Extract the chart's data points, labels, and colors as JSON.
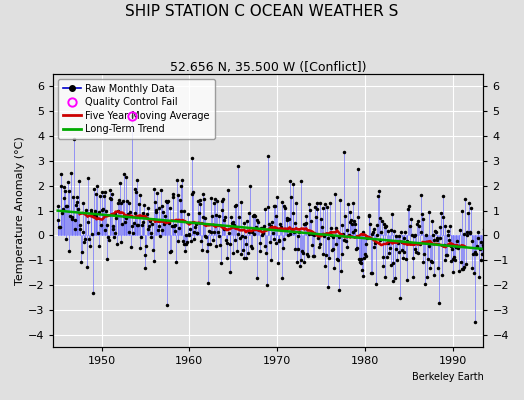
{
  "title": "SHIP STATION C OCEAN WEATHER S",
  "subtitle": "52.656 N, 35.500 W ([Conflict])",
  "ylabel": "Temperature Anomaly (°C)",
  "xlabel_bottom": "Berkeley Earth",
  "ylim": [
    -4.5,
    6.5
  ],
  "yticks": [
    -4,
    -3,
    -2,
    -1,
    0,
    1,
    2,
    3,
    4,
    5,
    6
  ],
  "xlim": [
    1944.5,
    1993.5
  ],
  "xticks": [
    1950,
    1960,
    1970,
    1980,
    1990
  ],
  "bg_color": "#e0e0e0",
  "grid_color": "#ffffff",
  "raw_line_color": "#6666ff",
  "raw_dot_color": "#000000",
  "ma_color": "#cc0000",
  "trend_color": "#00aa00",
  "qc_color": "#ff00ff",
  "legend_raw_color": "#0000cc",
  "title_fontsize": 11,
  "subtitle_fontsize": 9,
  "seed": 12345
}
